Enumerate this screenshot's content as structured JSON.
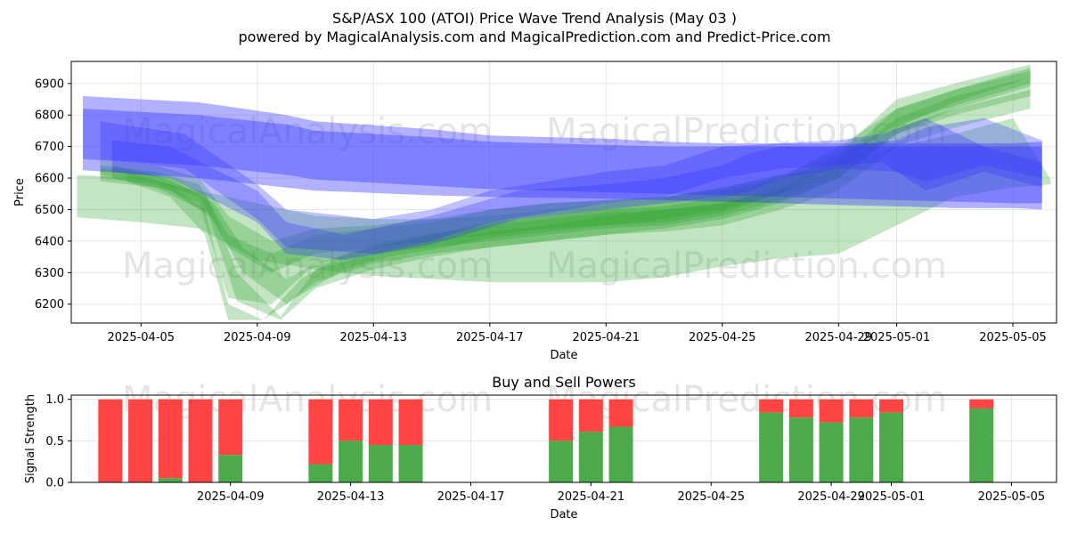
{
  "figure": {
    "title_line1": "S&P/ASX 100 (ATOI) Price Wave Trend Analysis (May 03 )",
    "title_line2": "powered by MagicalAnalysis.com and MagicalPrediction.com and Predict-Price.com",
    "watermarks": [
      "MagicalAnalysis.com",
      "MagicalPrediction.com",
      "MagicalAnalysis.com",
      "MagicalPrediction.com",
      "MagicalAnalysis.com",
      "MagicalPrediction.com"
    ]
  },
  "colors": {
    "blue": "#3333ff",
    "green": "#2ca02c",
    "buy": "#4caa4c",
    "sell": "#ff4444"
  },
  "chart_data": [
    {
      "type": "area",
      "title": "",
      "xlabel": "Date",
      "ylabel": "Price",
      "x_start": "2025-04-03",
      "x_end": "2025-05-06",
      "xlim_days": [
        -0.4,
        33.5
      ],
      "ylim": [
        6140,
        6970
      ],
      "x_tick_labels": [
        "2025-04-05",
        "2025-04-09",
        "2025-04-13",
        "2025-04-17",
        "2025-04-21",
        "2025-04-25",
        "2025-04-29",
        "2025-05-01",
        "2025-05-05"
      ],
      "x_tick_days": [
        2,
        6,
        10,
        14,
        18,
        22,
        26,
        28,
        32
      ],
      "y_ticks": [
        6200,
        6300,
        6400,
        6500,
        6600,
        6700,
        6800,
        6900
      ],
      "grid": true,
      "blue_bands": [
        {
          "day": [
            0,
            4,
            7,
            8,
            12,
            14,
            18,
            20,
            22,
            24,
            26,
            28,
            30,
            32,
            33
          ],
          "upper": [
            6860,
            6840,
            6800,
            6780,
            6755,
            6735,
            6725,
            6715,
            6710,
            6710,
            6710,
            6710,
            6710,
            6710,
            6715
          ],
          "lower": [
            6625,
            6600,
            6570,
            6560,
            6545,
            6540,
            6535,
            6530,
            6525,
            6520,
            6515,
            6510,
            6505,
            6505,
            6500
          ]
        },
        {
          "day": [
            0,
            4,
            7,
            8,
            12,
            14,
            18,
            20,
            22,
            24,
            26,
            28,
            30,
            32,
            33
          ],
          "upper": [
            6820,
            6800,
            6770,
            6750,
            6730,
            6715,
            6705,
            6700,
            6700,
            6700,
            6700,
            6700,
            6700,
            6700,
            6700
          ],
          "lower": [
            6660,
            6640,
            6610,
            6595,
            6575,
            6565,
            6555,
            6550,
            6545,
            6540,
            6535,
            6530,
            6525,
            6520,
            6520
          ]
        },
        {
          "day": [
            0.6,
            3.5,
            6,
            7,
            10,
            12,
            14,
            18,
            20,
            22,
            24,
            26,
            27.5,
            29,
            31,
            33
          ],
          "upper": [
            6780,
            6740,
            6580,
            6500,
            6470,
            6500,
            6560,
            6620,
            6640,
            6700,
            6710,
            6720,
            6740,
            6790,
            6700,
            6650
          ],
          "lower": [
            6660,
            6630,
            6470,
            6380,
            6360,
            6400,
            6460,
            6520,
            6540,
            6600,
            6630,
            6640,
            6650,
            6560,
            6620,
            6570
          ]
        },
        {
          "day": [
            1,
            3,
            6,
            7,
            9,
            12,
            15,
            18,
            20,
            22,
            23,
            24,
            26,
            28,
            29,
            31,
            33
          ],
          "upper": [
            6720,
            6700,
            6560,
            6460,
            6420,
            6480,
            6560,
            6580,
            6600,
            6640,
            6680,
            6700,
            6700,
            6720,
            6760,
            6790,
            6720
          ],
          "lower": [
            6620,
            6600,
            6460,
            6360,
            6340,
            6390,
            6470,
            6500,
            6520,
            6540,
            6560,
            6600,
            6630,
            6620,
            6590,
            6640,
            6600
          ]
        }
      ],
      "green_bands": [
        {
          "day": [
            -0.2,
            2,
            4,
            6,
            8,
            10,
            12,
            14,
            16,
            18,
            20,
            22,
            24,
            26,
            28,
            30,
            32,
            33.3
          ],
          "upper": [
            6610,
            6600,
            6560,
            6520,
            6480,
            6470,
            6470,
            6480,
            6500,
            6520,
            6540,
            6570,
            6610,
            6630,
            6700,
            6740,
            6790,
            6595
          ],
          "lower": [
            6475,
            6460,
            6440,
            6340,
            6310,
            6290,
            6280,
            6270,
            6270,
            6270,
            6285,
            6320,
            6345,
            6360,
            6450,
            6540,
            6570,
            6580
          ]
        },
        {
          "day": [
            0.6,
            2.5,
            4,
            5,
            6.5,
            8,
            10,
            12,
            14,
            16,
            18,
            20,
            22,
            24,
            26,
            28,
            30,
            32.6
          ],
          "upper": [
            6640,
            6620,
            6580,
            6420,
            6360,
            6420,
            6440,
            6460,
            6500,
            6520,
            6530,
            6540,
            6560,
            6600,
            6660,
            6820,
            6880,
            6950
          ],
          "lower": [
            6600,
            6580,
            6520,
            6220,
            6200,
            6330,
            6360,
            6380,
            6400,
            6420,
            6440,
            6450,
            6480,
            6530,
            6600,
            6740,
            6820,
            6890
          ]
        },
        {
          "day": [
            0.6,
            2.5,
            4,
            5,
            6.5,
            8,
            10,
            12,
            14,
            16,
            18,
            20,
            22,
            24,
            26,
            28,
            30,
            32.6
          ],
          "upper": [
            6660,
            6640,
            6600,
            6480,
            6400,
            6440,
            6450,
            6470,
            6500,
            6520,
            6530,
            6540,
            6570,
            6610,
            6680,
            6850,
            6900,
            6960
          ],
          "lower": [
            6610,
            6590,
            6540,
            6380,
            6300,
            6360,
            6380,
            6400,
            6420,
            6440,
            6450,
            6460,
            6490,
            6550,
            6620,
            6760,
            6840,
            6920
          ]
        },
        {
          "day": [
            1,
            3,
            4.5,
            5.5,
            7,
            8,
            10,
            12,
            14,
            16,
            18,
            20,
            22,
            24,
            26,
            28,
            30,
            32.6
          ],
          "upper": [
            6640,
            6600,
            6520,
            6380,
            6280,
            6330,
            6380,
            6420,
            6450,
            6470,
            6490,
            6500,
            6520,
            6560,
            6620,
            6760,
            6820,
            6880
          ],
          "lower": [
            6600,
            6560,
            6470,
            6300,
            6200,
            6270,
            6330,
            6360,
            6380,
            6400,
            6420,
            6430,
            6450,
            6500,
            6560,
            6700,
            6760,
            6820
          ]
        },
        {
          "day": [
            0.6,
            2.5,
            4.3,
            5.3,
            6.8,
            8,
            10,
            12,
            14,
            16,
            18,
            20,
            22,
            24,
            26,
            28,
            30,
            32.6
          ],
          "upper": [
            6630,
            6610,
            6540,
            6300,
            6160,
            6310,
            6360,
            6400,
            6430,
            6450,
            6480,
            6500,
            6520,
            6570,
            6650,
            6790,
            6860,
            6920
          ],
          "lower": [
            6590,
            6570,
            6490,
            6210,
            6150,
            6250,
            6310,
            6350,
            6380,
            6400,
            6420,
            6440,
            6470,
            6520,
            6600,
            6740,
            6800,
            6860
          ]
        },
        {
          "day": [
            1.5,
            3,
            4.2,
            5,
            6.2,
            7.5,
            9,
            10.5,
            12.5,
            14,
            16,
            18,
            20,
            22,
            24,
            26,
            28,
            30,
            32.6
          ],
          "upper": [
            6620,
            6580,
            6500,
            6200,
            6150,
            6280,
            6360,
            6400,
            6430,
            6460,
            6480,
            6500,
            6510,
            6540,
            6600,
            6700,
            6820,
            6880,
            6940
          ],
          "lower": [
            6590,
            6540,
            6420,
            6150,
            6150,
            6230,
            6310,
            6350,
            6380,
            6410,
            6430,
            6450,
            6470,
            6500,
            6550,
            6650,
            6770,
            6830,
            6900
          ]
        }
      ]
    },
    {
      "type": "bar",
      "title": "Buy and Sell Powers",
      "xlabel": "Date",
      "ylabel": "Signal Strength",
      "xlim_days": [
        -1.3,
        31.5
      ],
      "ylim": [
        0,
        1.05
      ],
      "y_ticks": [
        0.0,
        0.5,
        1.0
      ],
      "y_tick_labels": [
        "0.0",
        "0.5",
        "1.0"
      ],
      "x_tick_labels": [
        "2025-04-09",
        "2025-04-13",
        "2025-04-17",
        "2025-04-21",
        "2025-04-25",
        "2025-04-29",
        "2025-05-01",
        "2025-05-05"
      ],
      "x_tick_days": [
        4,
        8,
        12,
        16,
        20,
        24,
        26,
        30
      ],
      "bars": [
        {
          "day": 0,
          "buy": 0.0
        },
        {
          "day": 1,
          "buy": 0.0
        },
        {
          "day": 2,
          "buy": 0.05
        },
        {
          "day": 3,
          "buy": 0.0
        },
        {
          "day": 4,
          "buy": 0.33
        },
        {
          "day": 7,
          "buy": 0.22
        },
        {
          "day": 8,
          "buy": 0.5
        },
        {
          "day": 9,
          "buy": 0.45
        },
        {
          "day": 10,
          "buy": 0.45
        },
        {
          "day": 15,
          "buy": 0.5
        },
        {
          "day": 16,
          "buy": 0.61
        },
        {
          "day": 17,
          "buy": 0.67
        },
        {
          "day": 22,
          "buy": 0.84
        },
        {
          "day": 23,
          "buy": 0.78
        },
        {
          "day": 24,
          "buy": 0.72
        },
        {
          "day": 25,
          "buy": 0.78
        },
        {
          "day": 26,
          "buy": 0.84
        },
        {
          "day": 29,
          "buy": 0.89
        }
      ],
      "sell_total": 1.0
    }
  ]
}
